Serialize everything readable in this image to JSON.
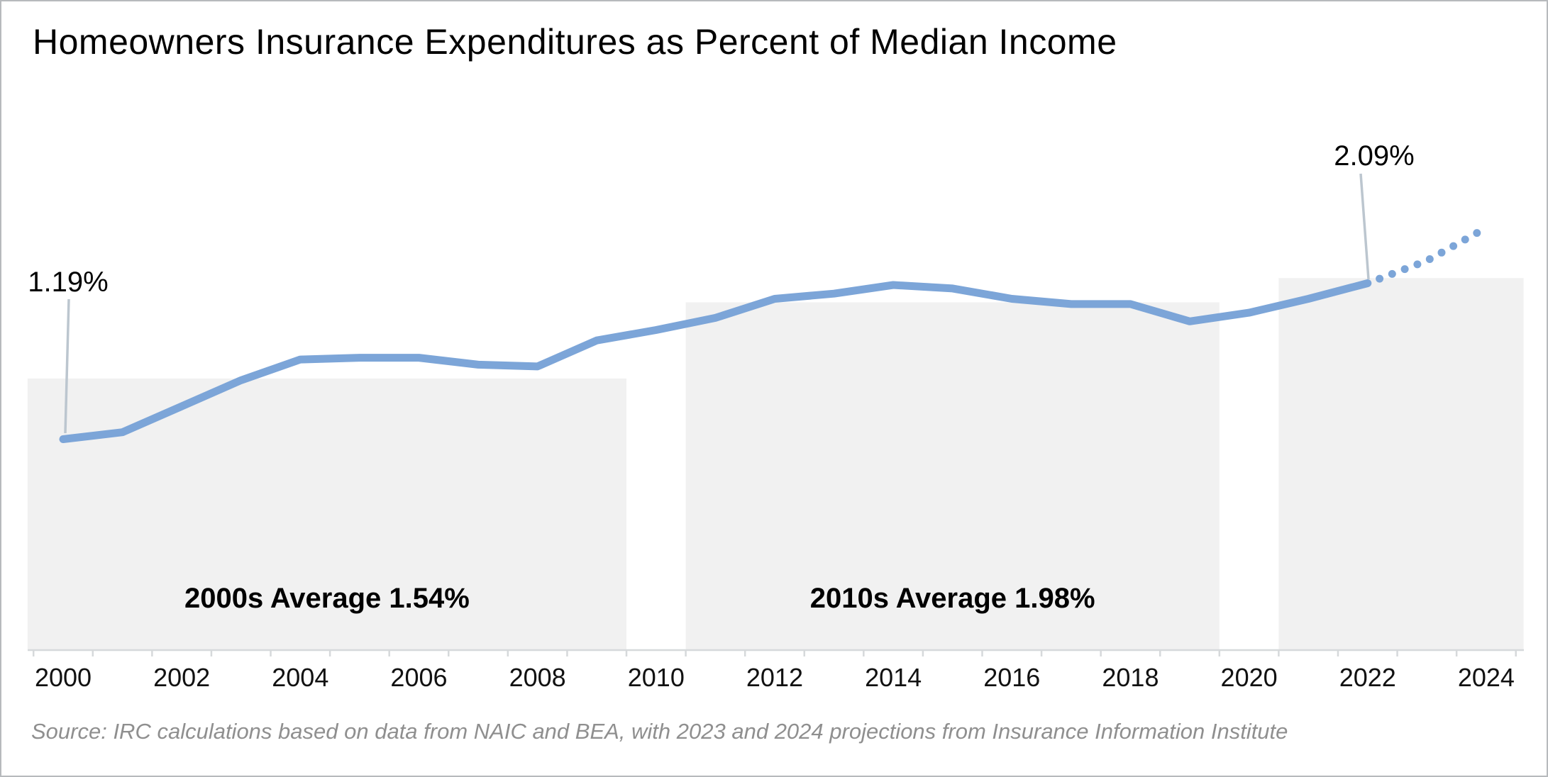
{
  "title": "Homeowners Insurance Expenditures as Percent of Median Income",
  "source": "Source: IRC calculations based on data from NAIC and BEA, with 2023 and 2024 projections from Insurance Information Institute",
  "colors": {
    "line": "#7CA5D8",
    "region_fill": "#f1f1f1",
    "callout": "#bcc6cf",
    "axis": "#d6d9db",
    "title_text": "#000000",
    "axis_text": "#111111",
    "source_text": "#8f8f8f"
  },
  "x_axis": {
    "tick_labels": [
      "2000",
      "2002",
      "2004",
      "2006",
      "2008",
      "2010",
      "2012",
      "2014",
      "2016",
      "2018",
      "2020",
      "2022",
      "2024"
    ]
  },
  "chart_data": {
    "type": "line",
    "title": "Homeowners Insurance Expenditures as Percent of Median Income",
    "xlabel": "",
    "ylabel": "",
    "x": [
      2000,
      2001,
      2002,
      2003,
      2004,
      2005,
      2006,
      2007,
      2008,
      2009,
      2010,
      2011,
      2012,
      2013,
      2014,
      2015,
      2016,
      2017,
      2018,
      2019,
      2020,
      2021,
      2022,
      2023,
      2024
    ],
    "values": [
      1.19,
      1.23,
      1.38,
      1.53,
      1.65,
      1.66,
      1.66,
      1.62,
      1.61,
      1.76,
      1.82,
      1.89,
      2.0,
      2.03,
      2.08,
      2.06,
      2.0,
      1.97,
      1.97,
      1.87,
      1.92,
      2.0,
      2.09,
      2.22,
      2.41
    ],
    "projection_start_year": 2022,
    "projection_style": "dotted",
    "legend": "none",
    "grid": false,
    "y_axis_visible": false,
    "annotations": [
      {
        "year": 2000,
        "value": 1.19,
        "label": "1.19%"
      },
      {
        "year": 2022,
        "value": 2.09,
        "label": "2.09%"
      }
    ],
    "regions": [
      {
        "label": "2000s Average 1.54%",
        "year_start": 1999.4,
        "year_end": 2009.5,
        "average": 1.54
      },
      {
        "label": "2010s Average 1.98%",
        "year_start": 2010.5,
        "year_end": 2019.5,
        "average": 1.98
      },
      {
        "label": "",
        "year_start": 2020.5,
        "year_end": 2024.63,
        "average": 2.12
      }
    ]
  }
}
